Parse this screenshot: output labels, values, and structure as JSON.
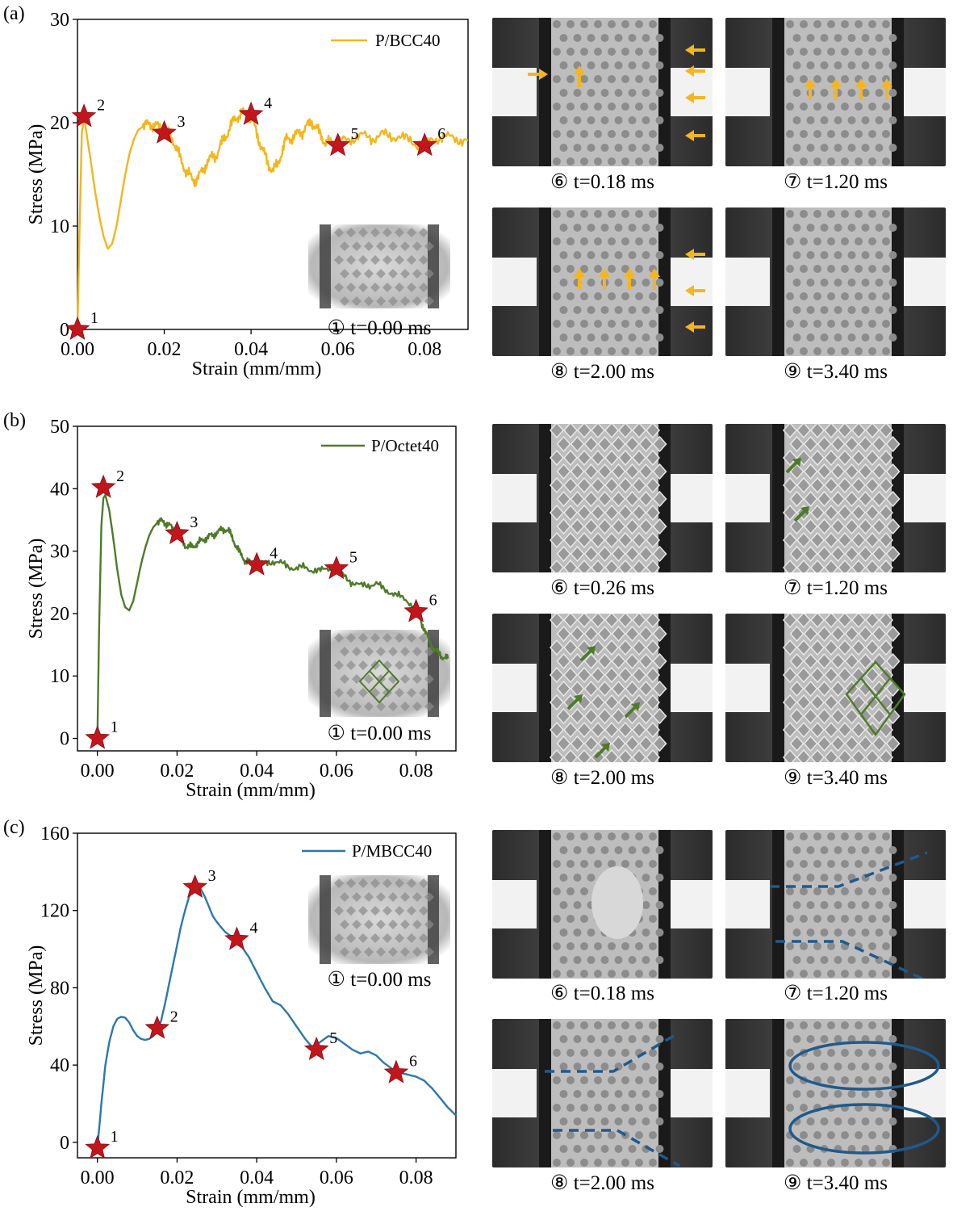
{
  "panel_labels": [
    "(a)",
    "(b)",
    "(c)"
  ],
  "chart_data": [
    {
      "type": "line",
      "panel": "(a)",
      "xlabel": "Strain (mm/mm)",
      "ylabel": "Stress (MPa)",
      "xlim": [
        0,
        0.09
      ],
      "ylim": [
        0,
        30
      ],
      "xticks": [
        "0.00",
        "0.02",
        "0.04",
        "0.06",
        "0.08"
      ],
      "yticks": [
        "0",
        "10",
        "20",
        "30"
      ],
      "legend": "top-right",
      "inset_caption": "① t=0.00 ms",
      "series": [
        {
          "name": "P/BCC40",
          "color": "#F5B51C",
          "x": [
            0,
            0.0005,
            0.001,
            0.0015,
            0.002,
            0.003,
            0.004,
            0.005,
            0.006,
            0.007,
            0.008,
            0.009,
            0.01,
            0.011,
            0.012,
            0.013,
            0.014,
            0.015,
            0.016,
            0.017,
            0.018,
            0.019,
            0.02,
            0.021,
            0.022,
            0.023,
            0.024,
            0.025,
            0.026,
            0.027,
            0.028,
            0.029,
            0.03,
            0.031,
            0.032,
            0.033,
            0.034,
            0.035,
            0.036,
            0.037,
            0.038,
            0.039,
            0.04,
            0.041,
            0.042,
            0.043,
            0.044,
            0.045,
            0.046,
            0.047,
            0.048,
            0.049,
            0.05,
            0.051,
            0.052,
            0.053,
            0.054,
            0.055,
            0.056,
            0.057,
            0.058,
            0.059,
            0.06,
            0.062,
            0.064,
            0.066,
            0.068,
            0.07,
            0.072,
            0.074,
            0.076,
            0.078,
            0.08,
            0.082,
            0.084,
            0.086,
            0.088,
            0.09
          ],
          "y": [
            0,
            10,
            19,
            20.5,
            19.2,
            16.5,
            13.5,
            11,
            9,
            7.8,
            8.3,
            10,
            12.5,
            15,
            17,
            18.4,
            19.3,
            19.6,
            19.8,
            19.9,
            19.7,
            19.5,
            19.2,
            19,
            18.4,
            17.2,
            16.3,
            15.3,
            14.8,
            14.4,
            14.8,
            15.5,
            16.3,
            16.6,
            16.9,
            17.8,
            18.6,
            19.4,
            20.2,
            20.7,
            20.9,
            20.8,
            20.5,
            19.4,
            18.1,
            17.0,
            16.0,
            15.4,
            15.8,
            17.1,
            18.3,
            18.5,
            18.7,
            19.0,
            19.2,
            19.7,
            20.1,
            19.5,
            18.8,
            18.2,
            18.0,
            18.3,
            18.0,
            18.4,
            18.6,
            18.7,
            18.5,
            18.9,
            18.6,
            18.8,
            18.3,
            18.0,
            17.7,
            18.4,
            18.7,
            18.5,
            18.4,
            18.3
          ]
        }
      ],
      "markers": [
        {
          "label": "1",
          "x": 0,
          "y": 0
        },
        {
          "label": "2",
          "x": 0.0015,
          "y": 20.6
        },
        {
          "label": "3",
          "x": 0.02,
          "y": 19.0
        },
        {
          "label": "4",
          "x": 0.04,
          "y": 20.8
        },
        {
          "label": "5",
          "x": 0.06,
          "y": 17.8
        },
        {
          "label": "6",
          "x": 0.08,
          "y": 17.8
        }
      ]
    },
    {
      "type": "line",
      "panel": "(b)",
      "xlabel": "Strain (mm/mm)",
      "ylabel": "Stress (MPa)",
      "xlim": [
        -0.005,
        0.09
      ],
      "ylim": [
        -2,
        50
      ],
      "xticks": [
        "0.00",
        "0.02",
        "0.04",
        "0.06",
        "0.08"
      ],
      "yticks": [
        "0",
        "10",
        "20",
        "30",
        "40",
        "50"
      ],
      "legend": "top-right",
      "inset_caption": "① t=0.00 ms",
      "series": [
        {
          "name": "P/Octet40",
          "color": "#4E7B2A",
          "x": [
            0,
            0.0005,
            0.001,
            0.0015,
            0.002,
            0.003,
            0.004,
            0.005,
            0.006,
            0.007,
            0.008,
            0.009,
            0.01,
            0.011,
            0.012,
            0.013,
            0.014,
            0.015,
            0.016,
            0.017,
            0.018,
            0.019,
            0.02,
            0.021,
            0.022,
            0.023,
            0.024,
            0.025,
            0.026,
            0.027,
            0.028,
            0.029,
            0.03,
            0.031,
            0.032,
            0.033,
            0.034,
            0.035,
            0.036,
            0.037,
            0.038,
            0.039,
            0.04,
            0.042,
            0.044,
            0.046,
            0.048,
            0.05,
            0.052,
            0.054,
            0.056,
            0.058,
            0.06,
            0.062,
            0.064,
            0.066,
            0.068,
            0.07,
            0.072,
            0.074,
            0.076,
            0.078,
            0.08,
            0.081,
            0.082,
            0.083,
            0.084,
            0.085,
            0.086,
            0.087,
            0.088
          ],
          "y": [
            0,
            20,
            34,
            38.5,
            39,
            36.5,
            32,
            27,
            23,
            21,
            20.5,
            22,
            25,
            28,
            30.5,
            32.5,
            33.8,
            34.5,
            34.8,
            34.6,
            34.2,
            33.4,
            32.6,
            31.8,
            31.0,
            30.6,
            30.8,
            31.2,
            31.6,
            32.0,
            32.3,
            32.6,
            33.0,
            33.3,
            33.6,
            33.2,
            32.0,
            30.6,
            29.4,
            28.6,
            28.2,
            28.0,
            27.8,
            28.1,
            28.4,
            28.0,
            27.6,
            27.2,
            27.4,
            27.0,
            26.8,
            27.3,
            27.0,
            26.0,
            25.0,
            24.4,
            24.6,
            24.8,
            23.8,
            23.4,
            22.6,
            22.0,
            20.8,
            19.2,
            17.6,
            16.0,
            14.8,
            14.0,
            13.4,
            13.0,
            12.8
          ]
        }
      ],
      "markers": [
        {
          "label": "1",
          "x": 0,
          "y": 0
        },
        {
          "label": "2",
          "x": 0.0015,
          "y": 40.2
        },
        {
          "label": "3",
          "x": 0.02,
          "y": 32.8
        },
        {
          "label": "4",
          "x": 0.04,
          "y": 27.8
        },
        {
          "label": "5",
          "x": 0.06,
          "y": 27.2
        },
        {
          "label": "6",
          "x": 0.08,
          "y": 20.3
        }
      ]
    },
    {
      "type": "line",
      "panel": "(c)",
      "xlabel": "Strain (mm/mm)",
      "ylabel": "Stress (MPa)",
      "xlim": [
        -0.005,
        0.09
      ],
      "ylim": [
        -8,
        160
      ],
      "xticks": [
        "0.00",
        "0.02",
        "0.04",
        "0.06",
        "0.08"
      ],
      "yticks": [
        "0",
        "40",
        "80",
        "120",
        "160"
      ],
      "legend": "top-right",
      "inset_caption": "① t=0.00 ms",
      "series": [
        {
          "name": "P/MBCC40",
          "color": "#2C77B0",
          "x": [
            0,
            0.001,
            0.002,
            0.003,
            0.004,
            0.005,
            0.006,
            0.007,
            0.008,
            0.009,
            0.01,
            0.011,
            0.012,
            0.013,
            0.014,
            0.015,
            0.016,
            0.017,
            0.018,
            0.019,
            0.02,
            0.021,
            0.022,
            0.023,
            0.024,
            0.025,
            0.026,
            0.027,
            0.028,
            0.029,
            0.03,
            0.032,
            0.034,
            0.036,
            0.038,
            0.04,
            0.042,
            0.044,
            0.046,
            0.048,
            0.05,
            0.052,
            0.054,
            0.056,
            0.058,
            0.06,
            0.062,
            0.064,
            0.066,
            0.068,
            0.07,
            0.072,
            0.074,
            0.076,
            0.078,
            0.08,
            0.082,
            0.084,
            0.086,
            0.088,
            0.09
          ],
          "y": [
            -3,
            20,
            40,
            52,
            60,
            64,
            65,
            64.5,
            62,
            58,
            55,
            53.5,
            53,
            53.5,
            55,
            58,
            63,
            72,
            82,
            92,
            102,
            112,
            120,
            127,
            131,
            133,
            131,
            127,
            122,
            117,
            114,
            109,
            106,
            102,
            96,
            88,
            80,
            73,
            71,
            66,
            60,
            54,
            49,
            52,
            55,
            54,
            51,
            48,
            46,
            47,
            45,
            41,
            38,
            36,
            35,
            34,
            32,
            28,
            23,
            18,
            14
          ]
        }
      ],
      "markers": [
        {
          "label": "1",
          "x": 0,
          "y": -3
        },
        {
          "label": "2",
          "x": 0.015,
          "y": 59
        },
        {
          "label": "3",
          "x": 0.0245,
          "y": 132
        },
        {
          "label": "4",
          "x": 0.035,
          "y": 105
        },
        {
          "label": "5",
          "x": 0.055,
          "y": 48
        },
        {
          "label": "6",
          "x": 0.075,
          "y": 36
        }
      ]
    }
  ],
  "frames": {
    "a": {
      "captions": [
        "⑥ t=0.18 ms",
        "⑦ t=1.20 ms",
        "⑧ t=2.00 ms",
        "⑨ t=3.40 ms"
      ],
      "annotation_color": "#F5B51C"
    },
    "b": {
      "captions": [
        "⑥ t=0.26 ms",
        "⑦ t=1.20 ms",
        "⑧ t=2.00 ms",
        "⑨ t=3.40 ms"
      ],
      "annotation_color": "#4E7B2A"
    },
    "c": {
      "captions": [
        "⑥ t=0.18 ms",
        "⑦ t=1.20 ms",
        "⑧ t=2.00 ms",
        "⑨ t=3.40 ms"
      ],
      "annotation_color": "#1F5A8C"
    }
  },
  "marker_color": "#C1161C"
}
